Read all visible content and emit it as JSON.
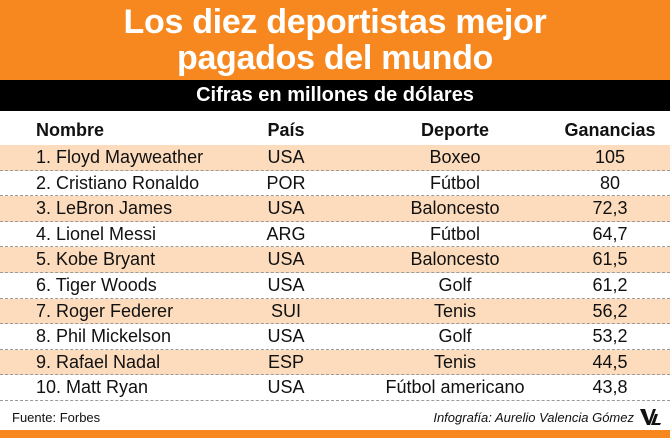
{
  "header": {
    "title_line1": "Los diez deportistas mejor",
    "title_line2": "pagados del mundo",
    "subtitle": "Cifras en millones de dólares"
  },
  "colors": {
    "accent": "#f7881f",
    "row_alt": "#fcdcbc",
    "bar": "#000000"
  },
  "chart_data": {
    "type": "table",
    "title": "Los diez deportistas mejor pagados del mundo",
    "subtitle": "Cifras en millones de dólares",
    "columns": [
      "Nombre",
      "País",
      "Deporte",
      "Ganancias"
    ],
    "rows": [
      [
        "1. Floyd Mayweather",
        "USA",
        "Boxeo",
        "105"
      ],
      [
        "2. Cristiano Ronaldo",
        "POR",
        "Fútbol",
        "80"
      ],
      [
        "3. LeBron James",
        "USA",
        "Baloncesto",
        "72,3"
      ],
      [
        "4. Lionel Messi",
        "ARG",
        "Fútbol",
        "64,7"
      ],
      [
        "5. Kobe Bryant",
        "USA",
        "Baloncesto",
        "61,5"
      ],
      [
        "6. Tiger Woods",
        "USA",
        "Golf",
        "61,2"
      ],
      [
        "7. Roger Federer",
        "SUI",
        "Tenis",
        "56,2"
      ],
      [
        "8. Phil Mickelson",
        "USA",
        "Golf",
        "53,2"
      ],
      [
        "9. Rafael Nadal",
        "ESP",
        "Tenis",
        "44,5"
      ],
      [
        "10. Matt Ryan",
        "USA",
        "Fútbol americano",
        "43,8"
      ]
    ]
  },
  "footer": {
    "source": "Fuente: Forbes",
    "credit": "Infografía: Aurelio Valencia Gómez",
    "logo_icon": "vl-logo-icon",
    "logo_text": "VL"
  }
}
